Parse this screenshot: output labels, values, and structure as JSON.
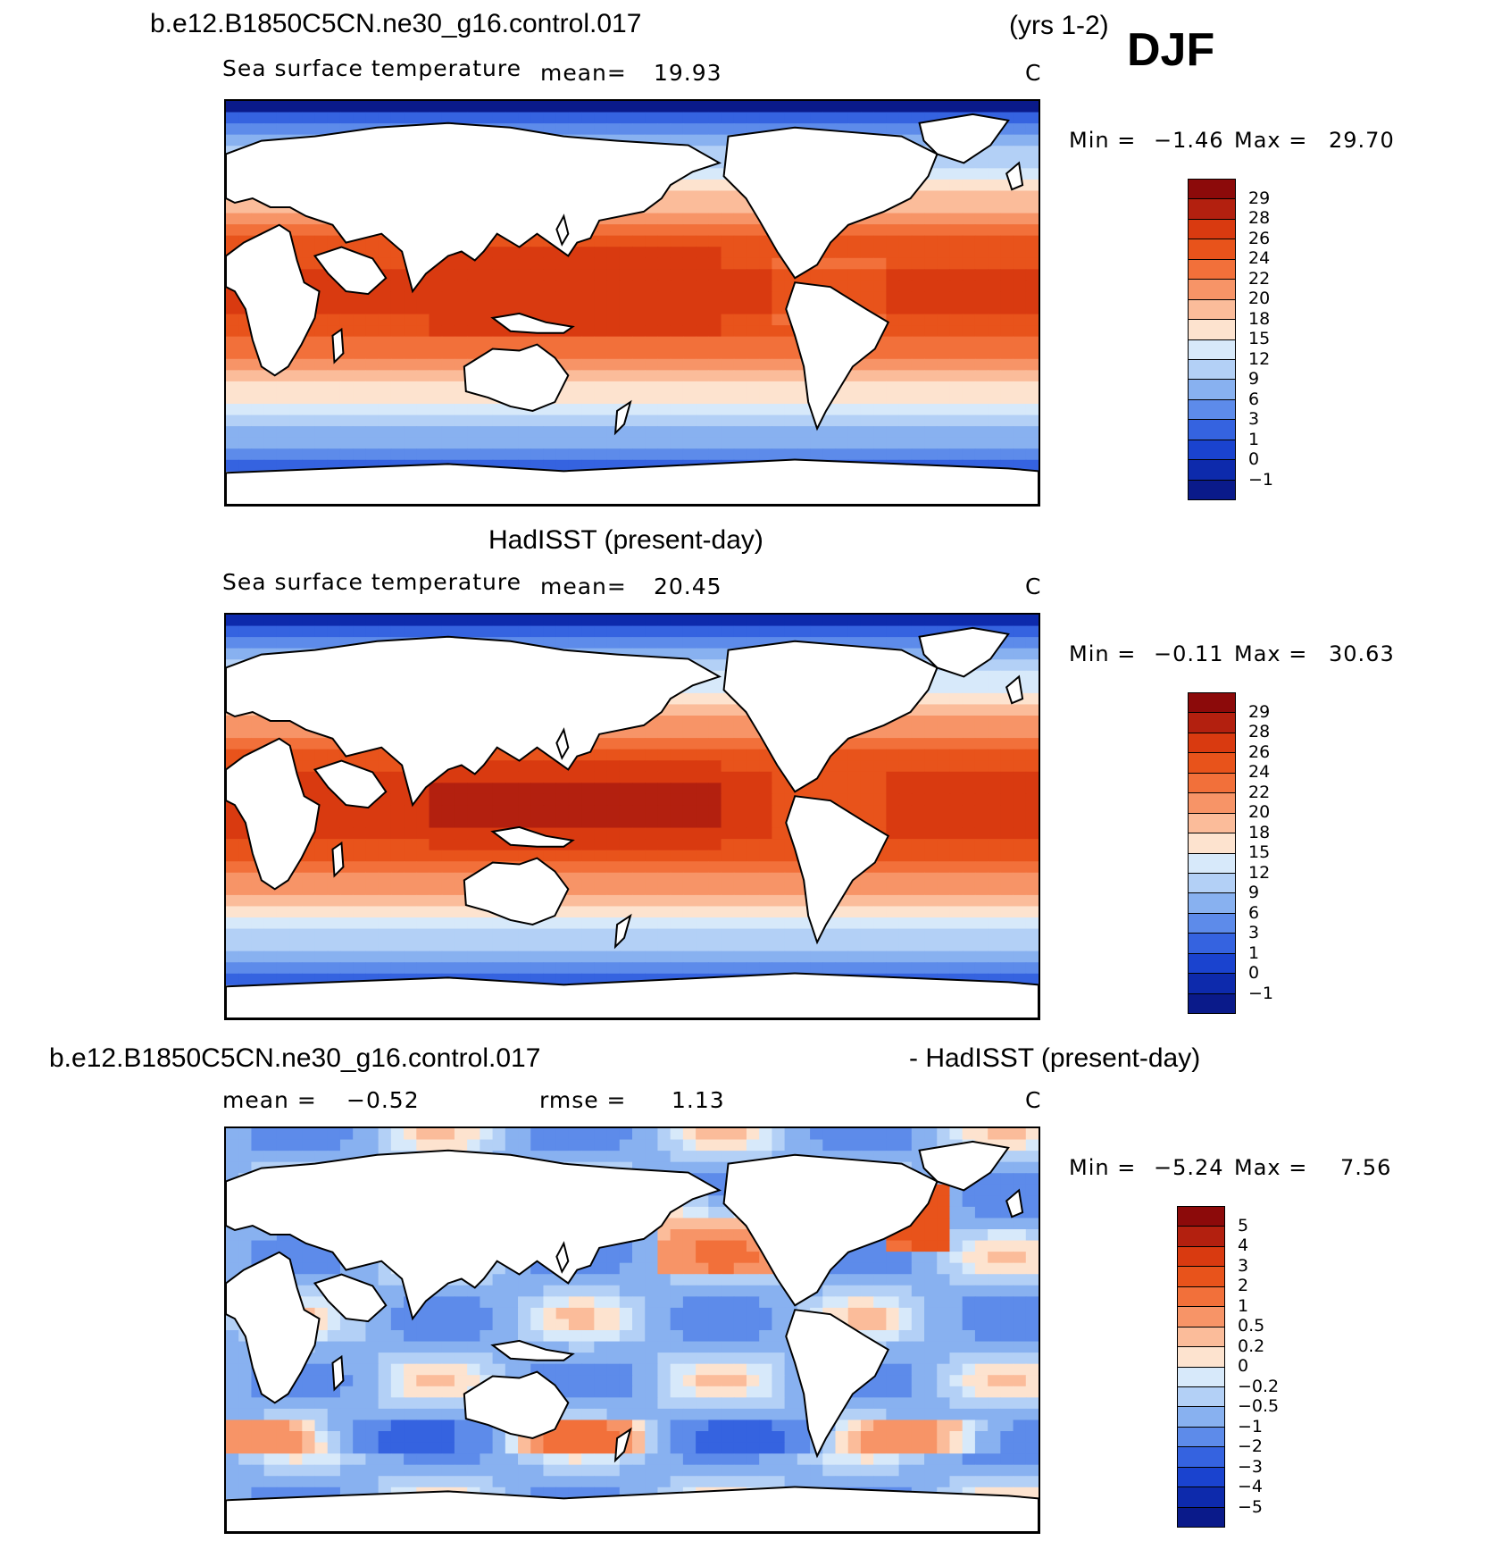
{
  "figure": {
    "case_title": "b.e12.B1850C5CN.ne30_g16.control.017",
    "years": "(yrs 1-2)",
    "season": "DJF"
  },
  "panels": [
    {
      "title": "",
      "variable": "Sea surface temperature",
      "mean_label": "mean=",
      "mean_value": "19.93",
      "units": "C",
      "min_label": "Min =",
      "min_value": "−1.46",
      "max_label": "Max =",
      "max_value": "29.70",
      "field": "model_sst",
      "colorbar": {
        "labels": [
          "29",
          "28",
          "26",
          "24",
          "22",
          "20",
          "18",
          "15",
          "12",
          "9",
          "6",
          "3",
          "1",
          "0",
          "−1"
        ],
        "colors": [
          "#8c0a0a",
          "#b3200f",
          "#d93a10",
          "#e8531b",
          "#f2703a",
          "#f79467",
          "#fbbc9a",
          "#fde3cf",
          "#d7e9fa",
          "#b3d0f6",
          "#88b1f0",
          "#5d8bea",
          "#3563e0",
          "#1a43cf",
          "#0d2aac",
          "#0a1a8a"
        ]
      }
    },
    {
      "title": "HadISST (present-day)",
      "variable": "Sea surface temperature",
      "mean_label": "mean=",
      "mean_value": "20.45",
      "units": "C",
      "min_label": "Min =",
      "min_value": "−0.11",
      "max_label": "Max =",
      "max_value": "30.63",
      "field": "obs_sst",
      "colorbar": {
        "labels": [
          "29",
          "28",
          "26",
          "24",
          "22",
          "20",
          "18",
          "15",
          "12",
          "9",
          "6",
          "3",
          "1",
          "0",
          "−1"
        ],
        "colors": [
          "#8c0a0a",
          "#b3200f",
          "#d93a10",
          "#e8531b",
          "#f2703a",
          "#f79467",
          "#fbbc9a",
          "#fde3cf",
          "#d7e9fa",
          "#b3d0f6",
          "#88b1f0",
          "#5d8bea",
          "#3563e0",
          "#1a43cf",
          "#0d2aac",
          "#0a1a8a"
        ]
      }
    },
    {
      "title_left": "b.e12.B1850C5CN.ne30_g16.control.017",
      "title_right": "- HadISST (present-day)",
      "mean_label": "mean =",
      "mean_value": "−0.52",
      "rmse_label": "rmse =",
      "rmse_value": "1.13",
      "units": "C",
      "min_label": "Min =",
      "min_value": "−5.24",
      "max_label": "Max =",
      "max_value": "7.56",
      "field": "difference",
      "colorbar": {
        "labels": [
          "5",
          "4",
          "3",
          "2",
          "1",
          "0.5",
          "0.2",
          "0",
          "−0.2",
          "−0.5",
          "−1",
          "−2",
          "−3",
          "−4",
          "−5"
        ],
        "colors": [
          "#8c0a0a",
          "#b3200f",
          "#d93a10",
          "#e8531b",
          "#f2703a",
          "#f79467",
          "#fbbc9a",
          "#fde3cf",
          "#d7e9fa",
          "#b3d0f6",
          "#88b1f0",
          "#5d8bea",
          "#3563e0",
          "#1a43cf",
          "#0d2aac",
          "#0a1a8a"
        ]
      }
    }
  ]
}
